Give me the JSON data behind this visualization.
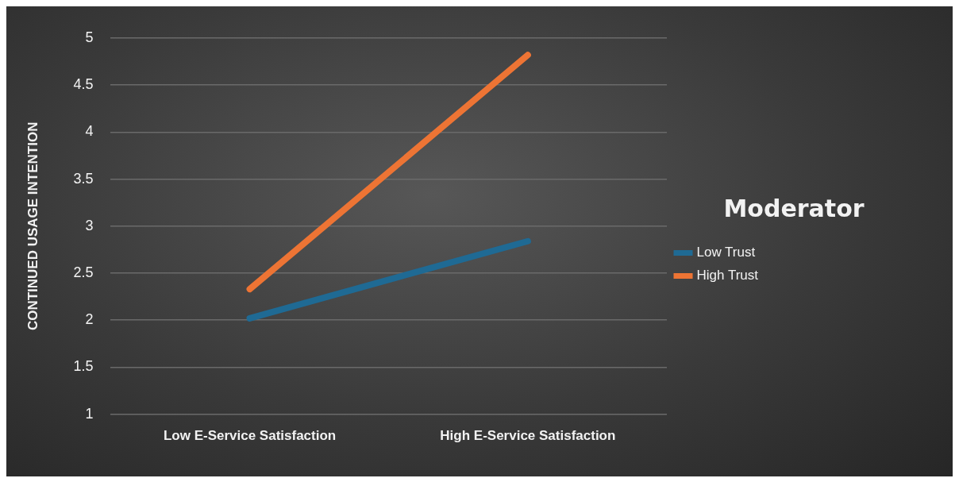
{
  "chart_data": {
    "type": "line",
    "ylabel": "CONTINUED USAGE INTENTION",
    "legend_title": "Moderator",
    "categories": [
      "Low E-Service Satisfaction",
      "High E-Service Satisfaction"
    ],
    "series": [
      {
        "name": "Low Trust",
        "color": "#1f6a94",
        "values": [
          2.02,
          2.84
        ]
      },
      {
        "name": "High Trust",
        "color": "#ed7434",
        "values": [
          2.33,
          4.82
        ]
      }
    ],
    "ylim": [
      1,
      5
    ],
    "yticks": [
      1,
      1.5,
      2,
      2.5,
      3,
      3.5,
      4,
      4.5,
      5
    ],
    "grid": "y",
    "legend": "right",
    "marker": "none",
    "line_style": "solid"
  }
}
